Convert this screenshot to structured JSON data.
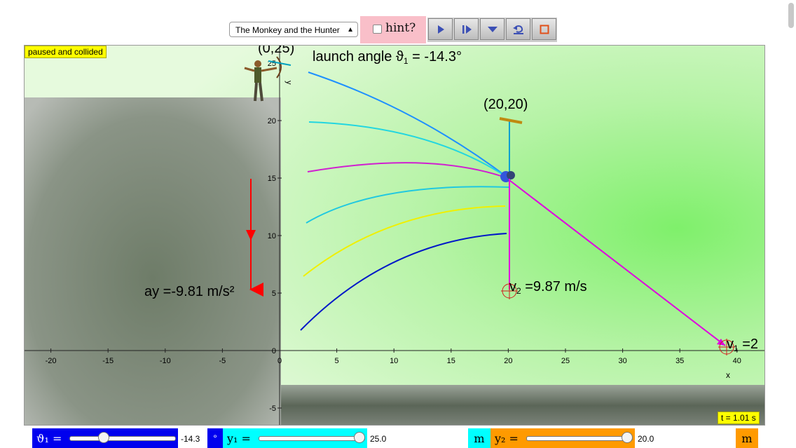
{
  "toolbar": {
    "scenario_select": "The Monkey and the Hunter",
    "hint_label": "hint?",
    "buttons": [
      {
        "name": "play",
        "icon": "play-icon"
      },
      {
        "name": "step",
        "icon": "step-icon"
      },
      {
        "name": "menu",
        "icon": "chevron-down-icon"
      },
      {
        "name": "reset",
        "icon": "reset-icon"
      },
      {
        "name": "stop",
        "icon": "stop-icon"
      }
    ]
  },
  "status": "paused and collided",
  "time": "t = 1.01 s",
  "sim": {
    "launch_label": "launch angle ϑ",
    "launch_sub": "1",
    "launch_value": " = -14.3°",
    "start_point": "(0,25)",
    "target_label": "(20,20)",
    "ay_label": "ay =-9.81 m/s²",
    "v2_prefix": "v",
    "v2_sub": "2",
    "v2_value": " =9.87 m/s",
    "v1_prefix": "v",
    "v1_sub": "1",
    "v1_value": " =2",
    "y_axis_label": "y",
    "x_axis_label": "x",
    "x_ticks": [
      "-20",
      "-15",
      "-10",
      "-5",
      "0",
      "5",
      "10",
      "15",
      "20",
      "25",
      "30",
      "35",
      "40"
    ],
    "y_ticks": [
      "25",
      "20",
      "15",
      "10",
      "5",
      "0",
      "-5"
    ]
  },
  "controls": {
    "theta_label": "ϑ₁ =",
    "theta_value": "-14.3",
    "theta_unit": "°",
    "theta_fraction": 0.3,
    "y1_label": "y₁ =",
    "y1_value": "25.0",
    "y1_unit": "m",
    "y1_fraction": 1.0,
    "y2_label": "y₂ =",
    "y2_value": "20.0",
    "y2_unit": "m",
    "y2_fraction": 1.0
  },
  "colors": {
    "theta_block": "#0000ee",
    "y1_block": "#00ffff",
    "y2_block": "#ff9a00",
    "trajectory_main": "#1e90ff",
    "velocity": "#e000e0",
    "gravity": "#ff0000",
    "status_bg": "#ffff00",
    "hint_bg": "#f9bfc9"
  }
}
